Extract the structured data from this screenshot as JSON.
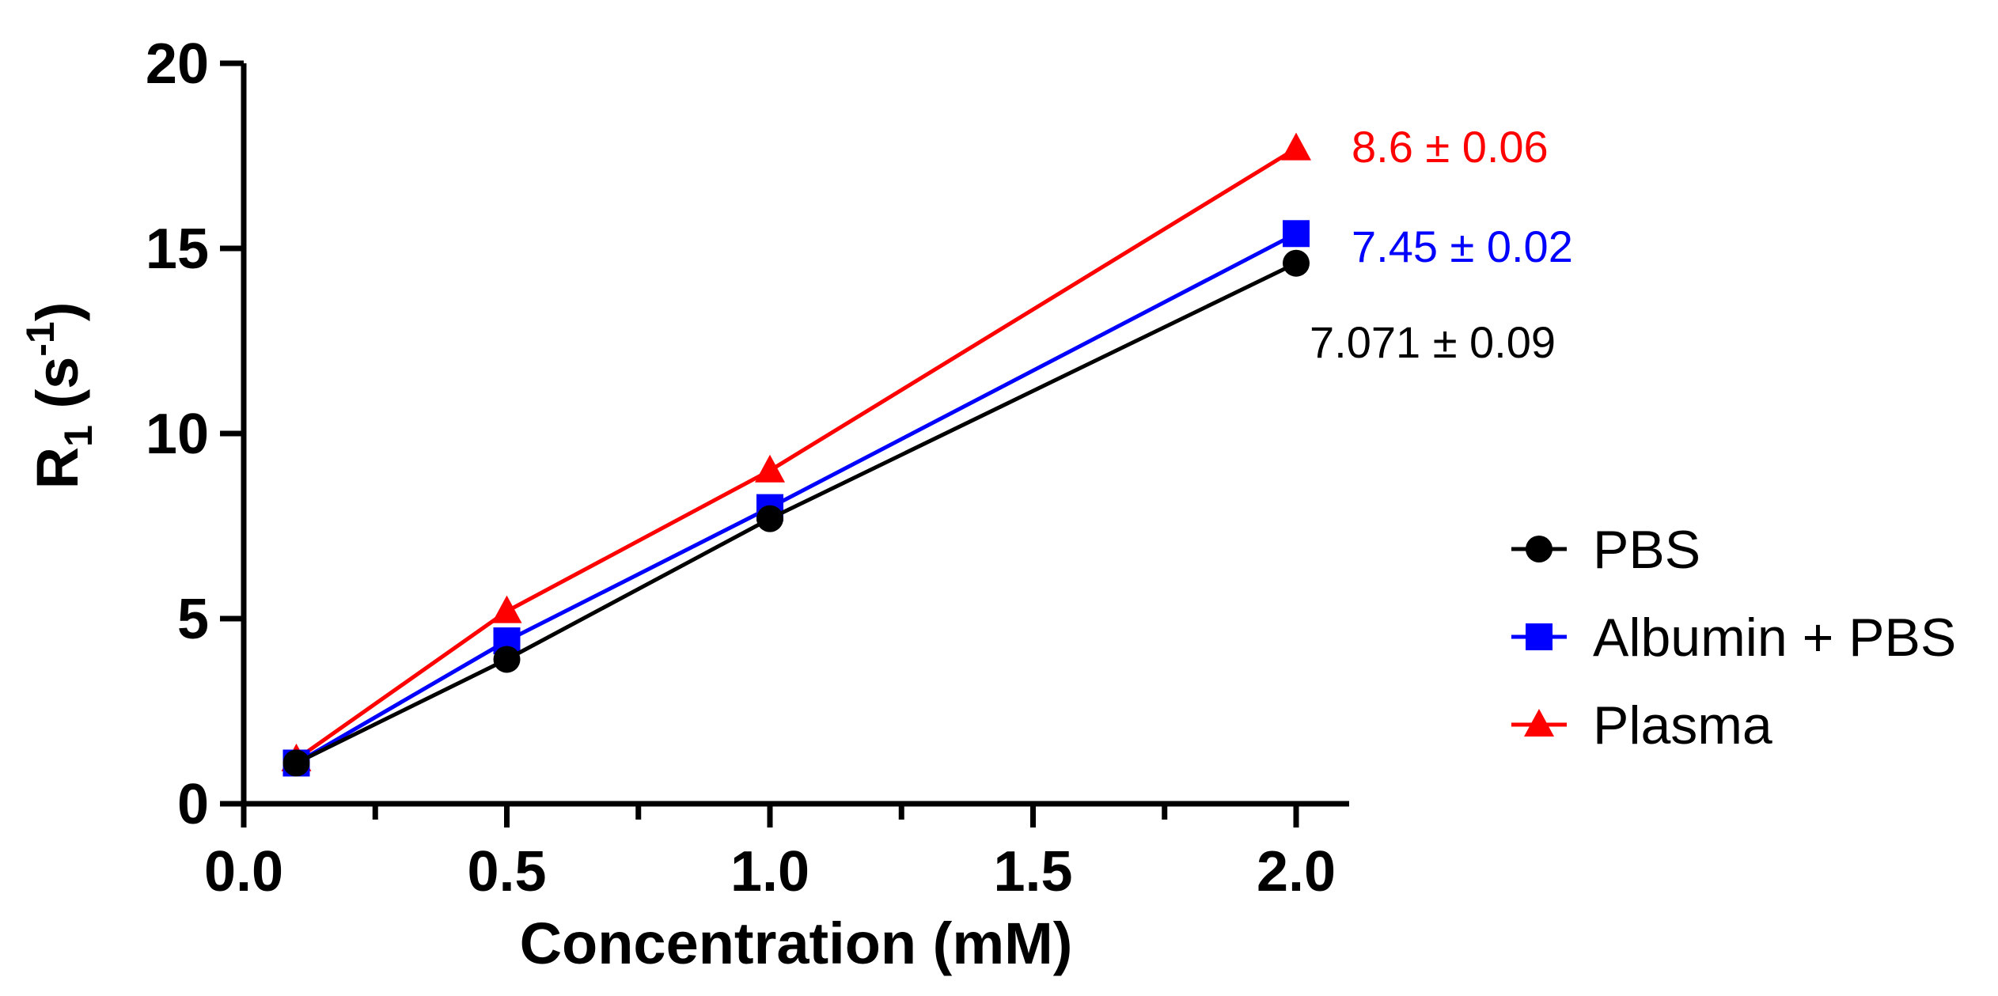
{
  "chart_data": {
    "type": "line",
    "x": [
      0.1,
      0.5,
      1.0,
      2.0
    ],
    "series": [
      {
        "name": "PBS",
        "color": "#000000",
        "marker": "circle",
        "values": [
          1.1,
          3.9,
          7.7,
          14.6
        ]
      },
      {
        "name": "Albumin + PBS",
        "color": "#0000ff",
        "marker": "square",
        "values": [
          1.1,
          4.4,
          8.0,
          15.4
        ]
      },
      {
        "name": "Plasma",
        "color": "#ff0000",
        "marker": "triangle",
        "values": [
          1.2,
          5.2,
          9.0,
          17.7
        ]
      }
    ],
    "xlabel": "Concentration (mM)",
    "ylabel": {
      "base": "R",
      "subscript": "1",
      "rest": " (s",
      "superscript": "-1",
      "close": ")"
    },
    "xlim": [
      0.0,
      2.0
    ],
    "ylim": [
      0,
      20
    ],
    "xticks": [
      0.0,
      0.5,
      1.0,
      1.5,
      2.0
    ],
    "xtick_labels": [
      "0.0",
      "0.5",
      "1.0",
      "1.5",
      "2.0"
    ],
    "yticks": [
      0,
      5,
      10,
      15,
      20
    ],
    "ytick_labels": [
      "0",
      "5",
      "10",
      "15",
      "20"
    ],
    "annotations": [
      {
        "text": "8.6 ± 0.06",
        "color": "#ff0000"
      },
      {
        "text": "7.45 ± 0.02",
        "color": "#0000ff"
      },
      {
        "text": "7.071 ± 0.09",
        "color": "#000000"
      }
    ],
    "legend_position": "right",
    "grid": false
  }
}
